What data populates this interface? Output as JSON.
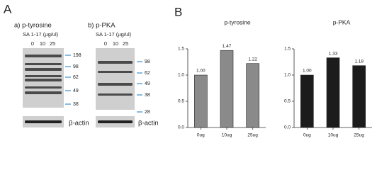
{
  "panel_labels": [
    "A",
    "B"
  ],
  "blots": [
    {
      "title": "a) p-tyrosine",
      "treatment": "SA 1-17 (µg/ul)",
      "lanes": [
        "0",
        "10",
        "25"
      ],
      "markers": [
        198,
        98,
        62,
        49,
        38
      ],
      "loading_control": "β-actin"
    },
    {
      "title": "b) p-PKA",
      "treatment": "SA 1-17 (µg/ul)",
      "lanes": [
        "0",
        "10",
        "25"
      ],
      "markers": [
        98,
        62,
        49,
        38,
        28
      ],
      "loading_control": "β-actin"
    }
  ],
  "chart_data": [
    {
      "type": "bar",
      "title": "p-tyrosine",
      "categories": [
        "0ug",
        "10ug",
        "25ug"
      ],
      "values": [
        1.0,
        1.47,
        1.22
      ],
      "value_labels": [
        "1.00",
        "1.47",
        "1.22"
      ],
      "color": "#8a8a8a",
      "ylim": [
        0,
        1.5
      ],
      "yticks": [
        {
          "value": 0,
          "label": "0.0"
        },
        0.5,
        {
          "value": 1,
          "label": "1.0"
        },
        1.5
      ]
    },
    {
      "type": "bar",
      "title": "p-PKA",
      "categories": [
        "0ug",
        "10ug",
        "25ug"
      ],
      "values": [
        1.0,
        1.33,
        1.18
      ],
      "value_labels": [
        "1.00",
        "1.33",
        "1.18"
      ],
      "color": "#1c1c1c",
      "ylim": [
        0,
        1.5
      ],
      "yticks": [
        {
          "value": 0,
          "label": "0.0"
        },
        0.5,
        {
          "value": 1,
          "label": "1.0"
        },
        1.5
      ]
    }
  ]
}
